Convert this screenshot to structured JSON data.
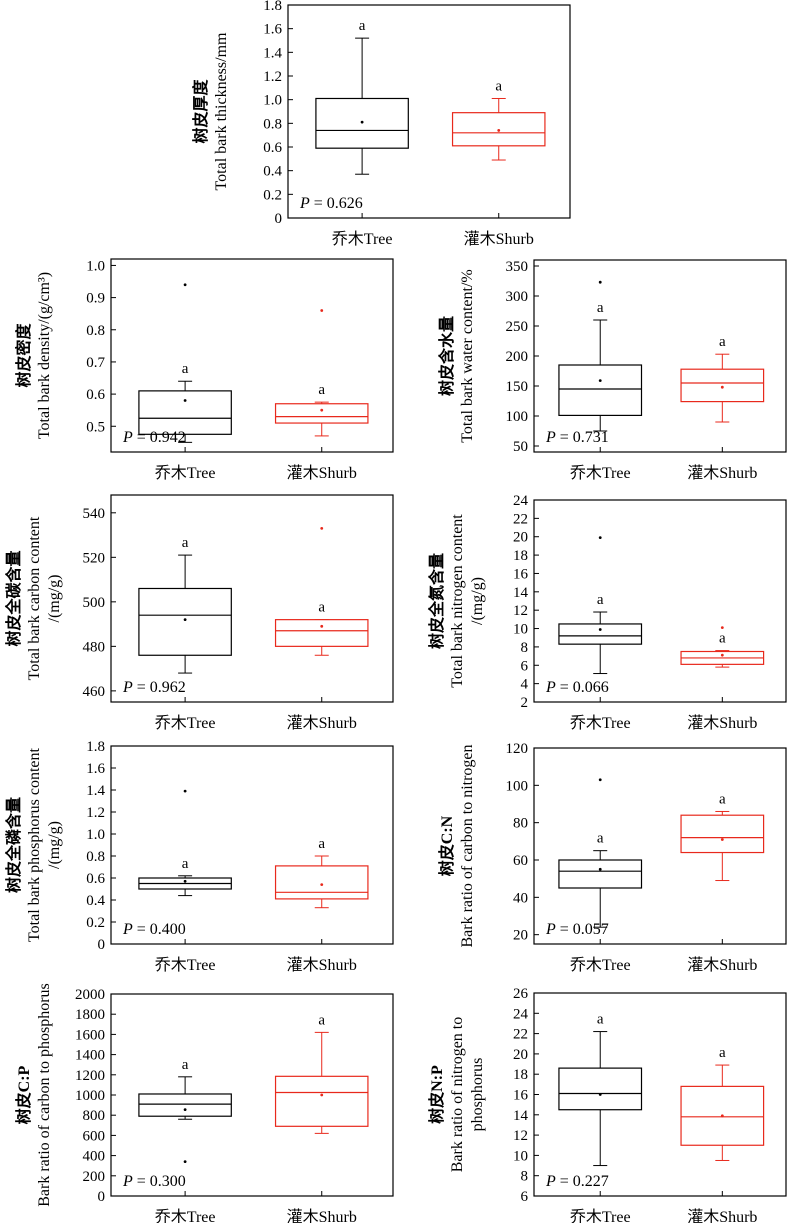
{
  "colors": {
    "tree": "#000000",
    "shrub": "#e8291c"
  },
  "chart_data": [
    {
      "type": "box",
      "ylabel_cn": "树皮厚度",
      "ylabel_en": "Total bark thickness/mm",
      "ylim": [
        0,
        1.8
      ],
      "yticks": [
        0,
        0.2,
        0.4,
        0.6,
        0.8,
        1.0,
        1.2,
        1.4,
        1.6,
        1.8
      ],
      "ticklabels": [
        "0",
        "0.2",
        "0.4",
        "0.6",
        "0.8",
        "1.0",
        "1.2",
        "1.4",
        "1.6",
        "1.8"
      ],
      "p_value": "0.626",
      "categories": [
        "乔木Tree",
        "灌木Shurb"
      ],
      "boxes": [
        {
          "whisker_low": 0.37,
          "q1": 0.59,
          "median": 0.74,
          "q3": 1.01,
          "whisker_high": 1.52,
          "mean": 0.81,
          "outliers": [],
          "letter": "a"
        },
        {
          "whisker_low": 0.49,
          "q1": 0.61,
          "median": 0.72,
          "q3": 0.89,
          "whisker_high": 1.01,
          "mean": 0.74,
          "outliers": [],
          "letter": "a"
        }
      ]
    },
    {
      "type": "box",
      "ylabel_cn": "树皮密度",
      "ylabel_en": "Total bark density/(g/cm³)",
      "ylim": [
        0.42,
        1.02
      ],
      "yticks": [
        0.4,
        0.5,
        0.6,
        0.7,
        0.8,
        0.9,
        1.0
      ],
      "ticklabels": [
        "0.4",
        "0.5",
        "0.6",
        "0.7",
        "0.8",
        "0.9",
        "1.0"
      ],
      "p_value": "0.942",
      "categories": [
        "乔木Tree",
        "灌木Shurb"
      ],
      "boxes": [
        {
          "whisker_low": 0.45,
          "q1": 0.475,
          "median": 0.525,
          "q3": 0.61,
          "whisker_high": 0.64,
          "mean": 0.58,
          "outliers": [
            0.94
          ],
          "letter": "a"
        },
        {
          "whisker_low": 0.47,
          "q1": 0.51,
          "median": 0.53,
          "q3": 0.57,
          "whisker_high": 0.575,
          "mean": 0.55,
          "outliers": [
            0.86
          ],
          "letter": "a"
        }
      ]
    },
    {
      "type": "box",
      "ylabel_cn": "树皮含水量",
      "ylabel_en": "Total bark water content/%",
      "ylim": [
        40,
        360
      ],
      "yticks": [
        50,
        100,
        150,
        200,
        250,
        300,
        350
      ],
      "ticklabels": [
        "50",
        "100",
        "150",
        "200",
        "250",
        "300",
        "350"
      ],
      "p_value": "0.731",
      "categories": [
        "乔木Tree",
        "灌木Shurb"
      ],
      "boxes": [
        {
          "whisker_low": 75,
          "q1": 101,
          "median": 145,
          "q3": 185,
          "whisker_high": 260,
          "mean": 159,
          "outliers": [
            323
          ],
          "letter": "a"
        },
        {
          "whisker_low": 90,
          "q1": 124,
          "median": 155,
          "q3": 178,
          "whisker_high": 203,
          "mean": 148,
          "outliers": [],
          "letter": "a"
        }
      ]
    },
    {
      "type": "box",
      "ylabel_cn": "树皮全碳含量",
      "ylabel_en": "Total bark carbon content",
      "ylabel_en2": "/(mg/g)",
      "ylim": [
        455,
        548
      ],
      "yticks": [
        460,
        480,
        500,
        520,
        540
      ],
      "ticklabels": [
        "460",
        "480",
        "500",
        "520",
        "540"
      ],
      "p_value": "0.962",
      "categories": [
        "乔木Tree",
        "灌木Shurb"
      ],
      "boxes": [
        {
          "whisker_low": 468,
          "q1": 476,
          "median": 494,
          "q3": 506,
          "whisker_high": 521,
          "mean": 492,
          "outliers": [],
          "letter": "a"
        },
        {
          "whisker_low": 476,
          "q1": 480,
          "median": 487,
          "q3": 492,
          "whisker_high": 492,
          "mean": 489,
          "outliers": [
            533
          ],
          "letter": "a"
        }
      ]
    },
    {
      "type": "box",
      "ylabel_cn": "树皮全氮含量",
      "ylabel_en": "Total bark nitrogen content",
      "ylabel_en2": "/(mg/g)",
      "ylim": [
        2,
        24
      ],
      "yticks": [
        2,
        4,
        6,
        8,
        10,
        12,
        14,
        16,
        18,
        20,
        22,
        24
      ],
      "ticklabels": [
        "2",
        "4",
        "6",
        "8",
        "10",
        "12",
        "14",
        "16",
        "18",
        "20",
        "22",
        "24"
      ],
      "p_value": "0.066",
      "categories": [
        "乔木Tree",
        "灌木Shurb"
      ],
      "boxes": [
        {
          "whisker_low": 5.1,
          "q1": 8.3,
          "median": 9.2,
          "q3": 10.5,
          "whisker_high": 11.8,
          "mean": 9.9,
          "outliers": [
            19.9
          ],
          "letter": "a"
        },
        {
          "whisker_low": 5.8,
          "q1": 6.1,
          "median": 6.8,
          "q3": 7.5,
          "whisker_high": 7.6,
          "mean": 7.1,
          "outliers": [
            10.1
          ],
          "letter": "a"
        }
      ]
    },
    {
      "type": "box",
      "ylabel_cn": "树皮全磷含量",
      "ylabel_en": "Total bark phosphorus content",
      "ylabel_en2": "/(mg/g)",
      "ylim": [
        0,
        1.8
      ],
      "yticks": [
        0,
        0.2,
        0.4,
        0.6,
        0.8,
        1.0,
        1.2,
        1.4,
        1.6,
        1.8
      ],
      "ticklabels": [
        "0",
        "0.2",
        "0.4",
        "0.6",
        "0.8",
        "1.0",
        "1.2",
        "1.4",
        "1.6",
        "1.8"
      ],
      "p_value": "0.400",
      "categories": [
        "乔木Tree",
        "灌木Shurb"
      ],
      "boxes": [
        {
          "whisker_low": 0.44,
          "q1": 0.5,
          "median": 0.55,
          "q3": 0.6,
          "whisker_high": 0.62,
          "mean": 0.57,
          "outliers": [
            1.39
          ],
          "letter": "a"
        },
        {
          "whisker_low": 0.33,
          "q1": 0.41,
          "median": 0.47,
          "q3": 0.71,
          "whisker_high": 0.8,
          "mean": 0.54,
          "outliers": [],
          "letter": "a"
        }
      ]
    },
    {
      "type": "box",
      "ylabel_cn": "树皮C:N",
      "ylabel_en": "Bark ratio of carbon to nitrogen",
      "ylim": [
        15,
        120
      ],
      "yticks": [
        20,
        40,
        60,
        80,
        100,
        120
      ],
      "ticklabels": [
        "20",
        "40",
        "60",
        "80",
        "100",
        "120"
      ],
      "p_value": "0.057",
      "categories": [
        "乔木Tree",
        "灌木Shurb"
      ],
      "boxes": [
        {
          "whisker_low": 24,
          "q1": 45,
          "median": 54,
          "q3": 60,
          "whisker_high": 65,
          "mean": 55,
          "outliers": [
            103
          ],
          "letter": "a"
        },
        {
          "whisker_low": 49,
          "q1": 64,
          "median": 72,
          "q3": 84,
          "whisker_high": 86,
          "mean": 71,
          "outliers": [],
          "letter": "a"
        }
      ]
    },
    {
      "type": "box",
      "ylabel_cn": "树皮C:P",
      "ylabel_en": "Bark ratio of carbon to phosphorus",
      "ylim": [
        0,
        2000
      ],
      "yticks": [
        0,
        200,
        400,
        600,
        800,
        1000,
        1200,
        1400,
        1600,
        1800,
        2000
      ],
      "ticklabels": [
        "0",
        "200",
        "400",
        "600",
        "800",
        "1000",
        "1200",
        "1400",
        "1600",
        "1800",
        "2000"
      ],
      "p_value": "0.300",
      "categories": [
        "乔木Tree",
        "灌木Shurb"
      ],
      "boxes": [
        {
          "whisker_low": 760,
          "q1": 790,
          "median": 910,
          "q3": 1010,
          "whisker_high": 1180,
          "mean": 855,
          "outliers": [
            340
          ],
          "letter": "a"
        },
        {
          "whisker_low": 620,
          "q1": 690,
          "median": 1025,
          "q3": 1185,
          "whisker_high": 1620,
          "mean": 1000,
          "outliers": [],
          "letter": "a"
        }
      ]
    },
    {
      "type": "box",
      "ylabel_cn": "树皮N:P",
      "ylabel_en": "Bark ratio of nitrogen to",
      "ylabel_en2": "phosphorus",
      "ylim": [
        6,
        26
      ],
      "yticks": [
        6,
        8,
        10,
        12,
        14,
        16,
        18,
        20,
        22,
        24,
        26
      ],
      "ticklabels": [
        "6",
        "8",
        "10",
        "12",
        "14",
        "16",
        "18",
        "20",
        "22",
        "24",
        "26"
      ],
      "p_value": "0.227",
      "categories": [
        "乔木Tree",
        "灌木Shurb"
      ],
      "boxes": [
        {
          "whisker_low": 9.0,
          "q1": 14.5,
          "median": 16.1,
          "q3": 18.6,
          "whisker_high": 22.2,
          "mean": 16.0,
          "outliers": [],
          "letter": "a"
        },
        {
          "whisker_low": 9.5,
          "q1": 11.0,
          "median": 13.8,
          "q3": 16.8,
          "whisker_high": 18.9,
          "mean": 13.9,
          "outliers": [],
          "letter": "a"
        }
      ]
    }
  ]
}
